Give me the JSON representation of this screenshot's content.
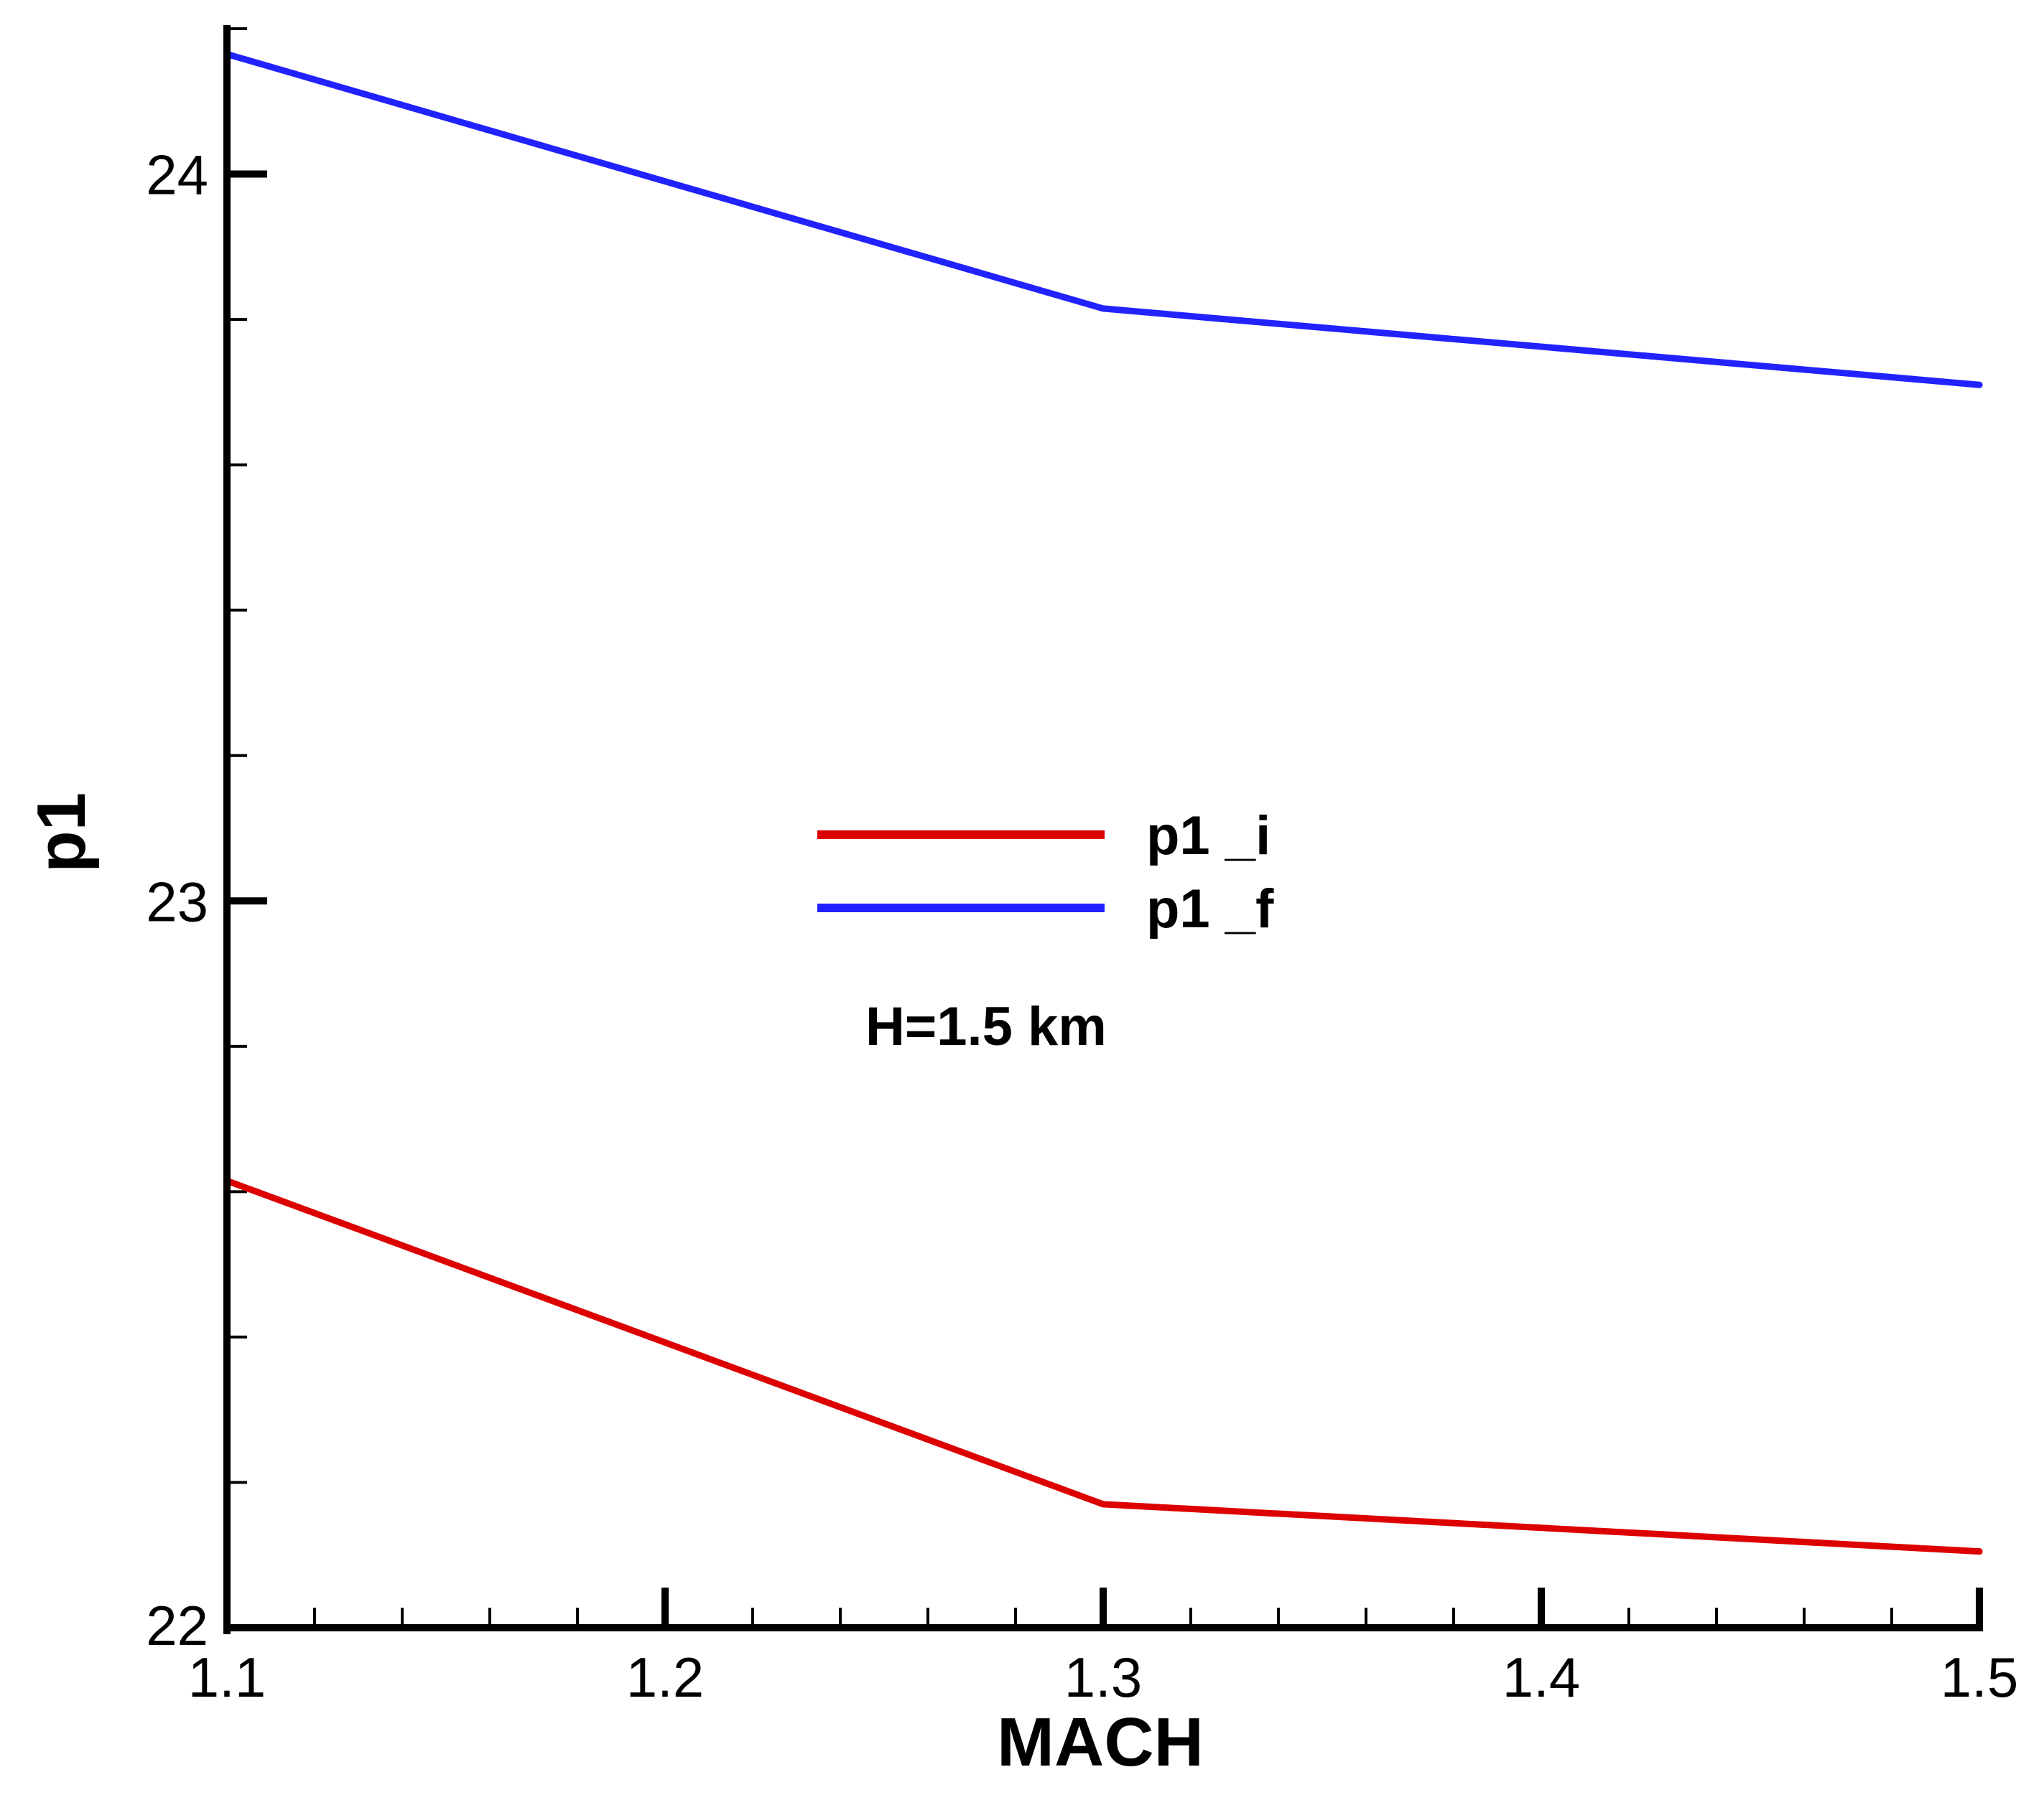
{
  "chart_data": {
    "type": "line",
    "xlabel": "MACH",
    "ylabel": "p1",
    "xlim": [
      1.1,
      1.5
    ],
    "ylim": [
      22,
      24.2
    ],
    "x_ticks": [
      "1.1",
      "1.2",
      "1.3",
      "1.4",
      "1.5"
    ],
    "x_tick_values": [
      1.1,
      1.2,
      1.3,
      1.4,
      1.5
    ],
    "y_ticks": [
      "22",
      "23",
      "24"
    ],
    "y_tick_values": [
      22,
      23,
      24
    ],
    "x": [
      1.1,
      1.3,
      1.5
    ],
    "series": [
      {
        "name": "p1 _i",
        "color": "#dd0000",
        "values": [
          22.615,
          22.17,
          22.105
        ]
      },
      {
        "name": "p1 _f",
        "color": "#2222ff",
        "values": [
          24.165,
          23.815,
          23.71
        ]
      }
    ],
    "annotation": "H=1.5 km",
    "legend_position": "center",
    "grid": false
  }
}
